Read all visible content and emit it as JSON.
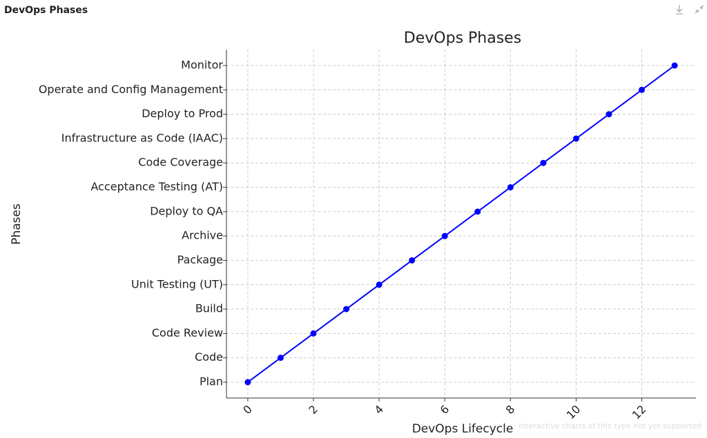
{
  "header": {
    "title": "DevOps Phases"
  },
  "chart_data": {
    "type": "line",
    "title": "DevOps Phases",
    "xlabel": "DevOps Lifecycle",
    "ylabel": "Phases",
    "x": [
      0,
      1,
      2,
      3,
      4,
      5,
      6,
      7,
      8,
      9,
      10,
      11,
      12,
      13
    ],
    "categories": [
      "Plan",
      "Code",
      "Code Review",
      "Build",
      "Unit Testing (UT)",
      "Package",
      "Archive",
      "Deploy to QA",
      "Acceptance Testing (AT)",
      "Code Coverage",
      "Infrastructure as Code (IAAC)",
      "Deploy to Prod",
      "Operate and Config Management",
      "Monitor"
    ],
    "color": "#0000ff",
    "xlim": [
      -0.65,
      13.65
    ],
    "xticks": [
      0,
      2,
      4,
      6,
      8,
      10,
      12
    ],
    "grid": true
  },
  "footer": {
    "note": "Interactive charts of this type not yet supported"
  }
}
